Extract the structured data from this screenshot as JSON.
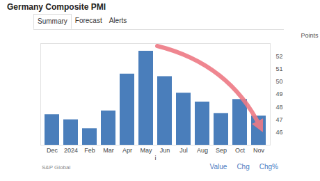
{
  "chart_data": {
    "type": "bar",
    "title": "Germany Composite PMI",
    "categories": [
      "Dec",
      "2024",
      "Feb",
      "Mar",
      "Apr",
      "May",
      "Jun",
      "Jul",
      "Aug",
      "Sep",
      "Oct",
      "Nov"
    ],
    "values": [
      47.4,
      47.0,
      46.3,
      47.7,
      50.6,
      52.4,
      50.4,
      49.1,
      48.4,
      47.5,
      48.6,
      47.3
    ],
    "color": "#4a7ebb",
    "ylim": [
      45,
      53
    ],
    "yticks": [
      46,
      47,
      48,
      49,
      50,
      51,
      52
    ],
    "y_label": "Points",
    "source": "S&P Global",
    "grid": false
  },
  "page": {
    "tabs": [
      "Summary",
      "Forecast",
      "Alerts"
    ],
    "links": [
      "Value",
      "Chg",
      "Chg%"
    ]
  }
}
